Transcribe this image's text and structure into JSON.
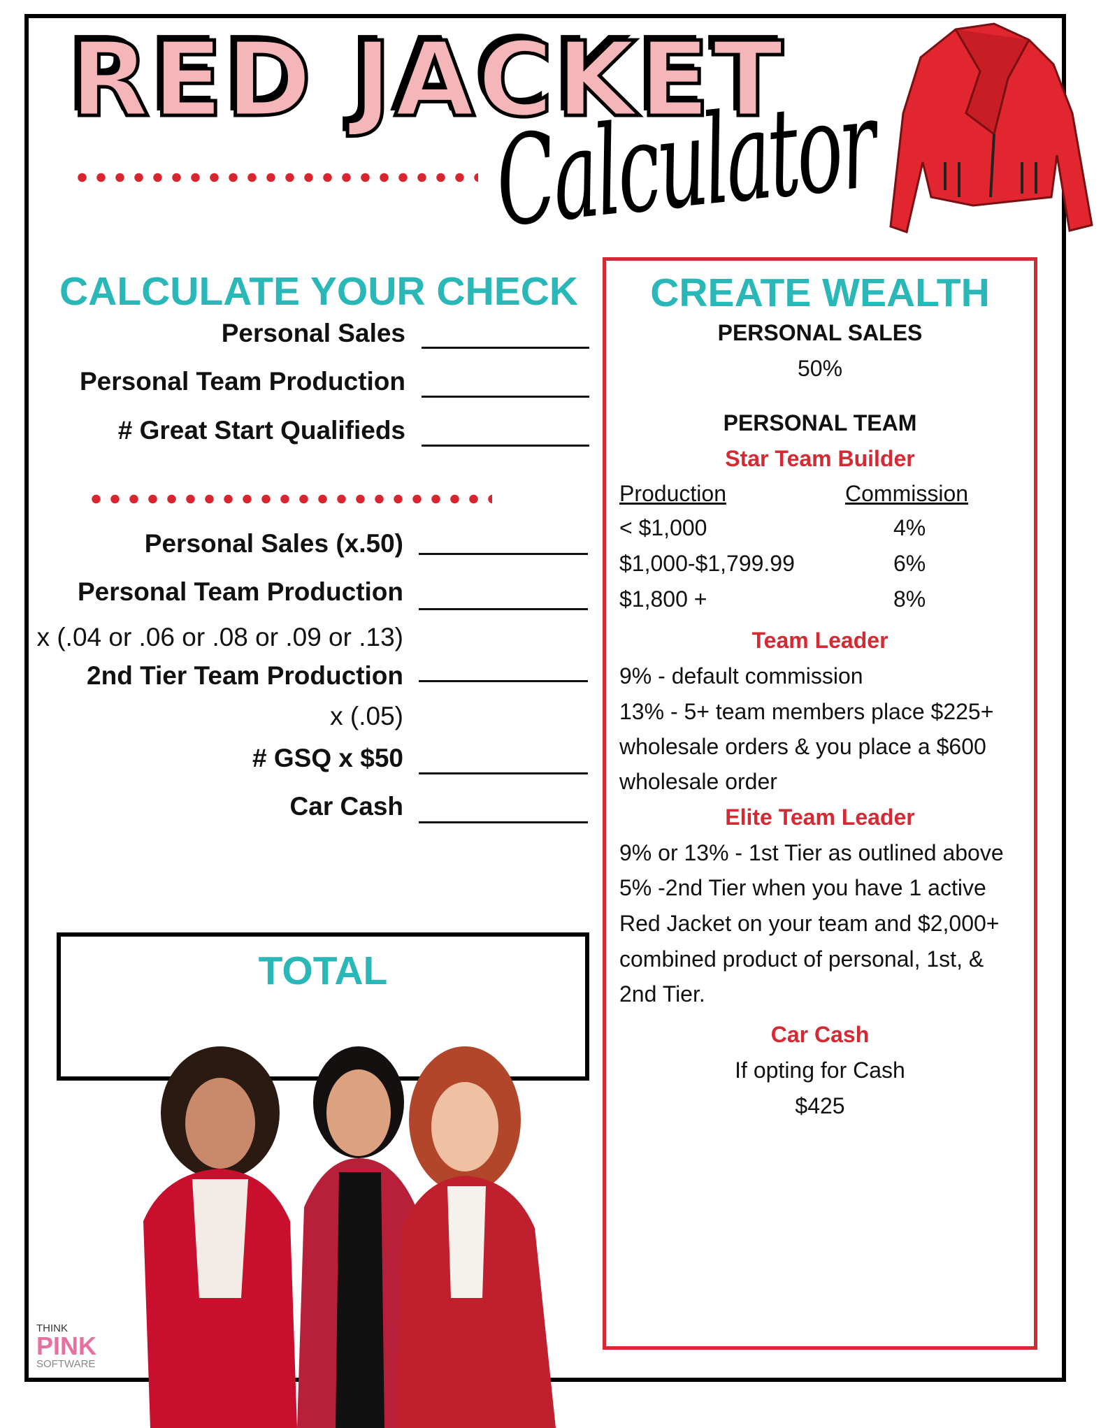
{
  "header": {
    "title": "RED JACKET",
    "subtitle": "Calculator"
  },
  "left": {
    "heading": "CALCULATE YOUR CHECK",
    "inputs": [
      "Personal Sales",
      "Personal Team Production",
      "# Great Start Qualifieds"
    ],
    "calc_rows": [
      {
        "label": "Personal Sales (x.50)",
        "bold": true,
        "line": true
      },
      {
        "label": "Personal Team Production",
        "bold": true,
        "line": true
      },
      {
        "label": "x (.04 or .06 or .08 or .09 or .13)",
        "bold": false,
        "line": false
      },
      {
        "label": "2nd Tier Team Production",
        "bold": true,
        "line": true
      },
      {
        "label": "x (.05)",
        "bold": false,
        "line": false
      },
      {
        "label": "# GSQ x $50",
        "bold": true,
        "line": true
      },
      {
        "label": "Car Cash",
        "bold": true,
        "line": true
      }
    ],
    "total_label": "TOTAL"
  },
  "right": {
    "heading": "CREATE WEALTH",
    "personal_sales_heading": "PERSONAL SALES",
    "personal_sales_value": "50%",
    "personal_team_heading": "PERSONAL TEAM",
    "star_team_builder": "Star Team Builder",
    "table_headers": [
      "Production",
      "Commission"
    ],
    "table_rows": [
      [
        "< $1,000",
        "4%"
      ],
      [
        "$1,000-$1,799.99",
        "6%"
      ],
      [
        "$1,800 +",
        "8%"
      ]
    ],
    "team_leader": "Team Leader",
    "team_leader_lines": [
      "9% - default commission",
      "13% - 5+ team members place $225+",
      "wholesale orders & you place a $600",
      "wholesale order"
    ],
    "elite_team_leader": "Elite Team Leader",
    "elite_lines": [
      "9% or 13% - 1st Tier as outlined above",
      "5% -2nd Tier when you have 1 active",
      "Red Jacket on your team and $2,000+",
      "combined product of personal, 1st, &",
      "2nd Tier."
    ],
    "car_cash": "Car Cash",
    "car_cash_lines": [
      "If opting for Cash",
      "$425"
    ]
  },
  "logo": {
    "line1": "THINK",
    "line2": "PINK",
    "line3": "SOFTWARE"
  },
  "colors": {
    "teal": "#2ab7b8",
    "red": "#d42a33",
    "pink": "#f4b6b8",
    "logo_pink": "#e8709f"
  }
}
